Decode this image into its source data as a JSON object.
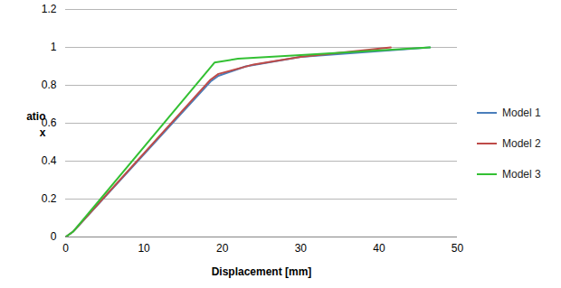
{
  "chart_data": {
    "type": "line",
    "xlabel": "Displacement [mm]",
    "ylabel": "atio\nx",
    "xlim": [
      0,
      50
    ],
    "xticks": [
      0,
      10,
      20,
      30,
      40,
      50
    ],
    "ylim": [
      0,
      1.2
    ],
    "yticks": [
      0,
      0.2,
      0.4,
      0.6,
      0.8,
      1,
      1.2
    ],
    "grid": true,
    "legend": "right",
    "series": [
      {
        "name": "Model 1",
        "color": "#4a7ebb",
        "x": [
          0,
          1,
          18.5,
          19.5,
          23,
          30,
          46.5
        ],
        "values": [
          0,
          0.03,
          0.82,
          0.85,
          0.9,
          0.95,
          1.0
        ]
      },
      {
        "name": "Model 2",
        "color": "#be4b48",
        "x": [
          0,
          1,
          18.5,
          19.5,
          24,
          30,
          41.5
        ],
        "values": [
          0,
          0.03,
          0.83,
          0.86,
          0.91,
          0.95,
          1.0
        ]
      },
      {
        "name": "Model 3",
        "color": "#33c033",
        "x": [
          0,
          1,
          19,
          22,
          30,
          46.5
        ],
        "values": [
          0,
          0.03,
          0.92,
          0.94,
          0.96,
          1.0
        ]
      }
    ]
  }
}
